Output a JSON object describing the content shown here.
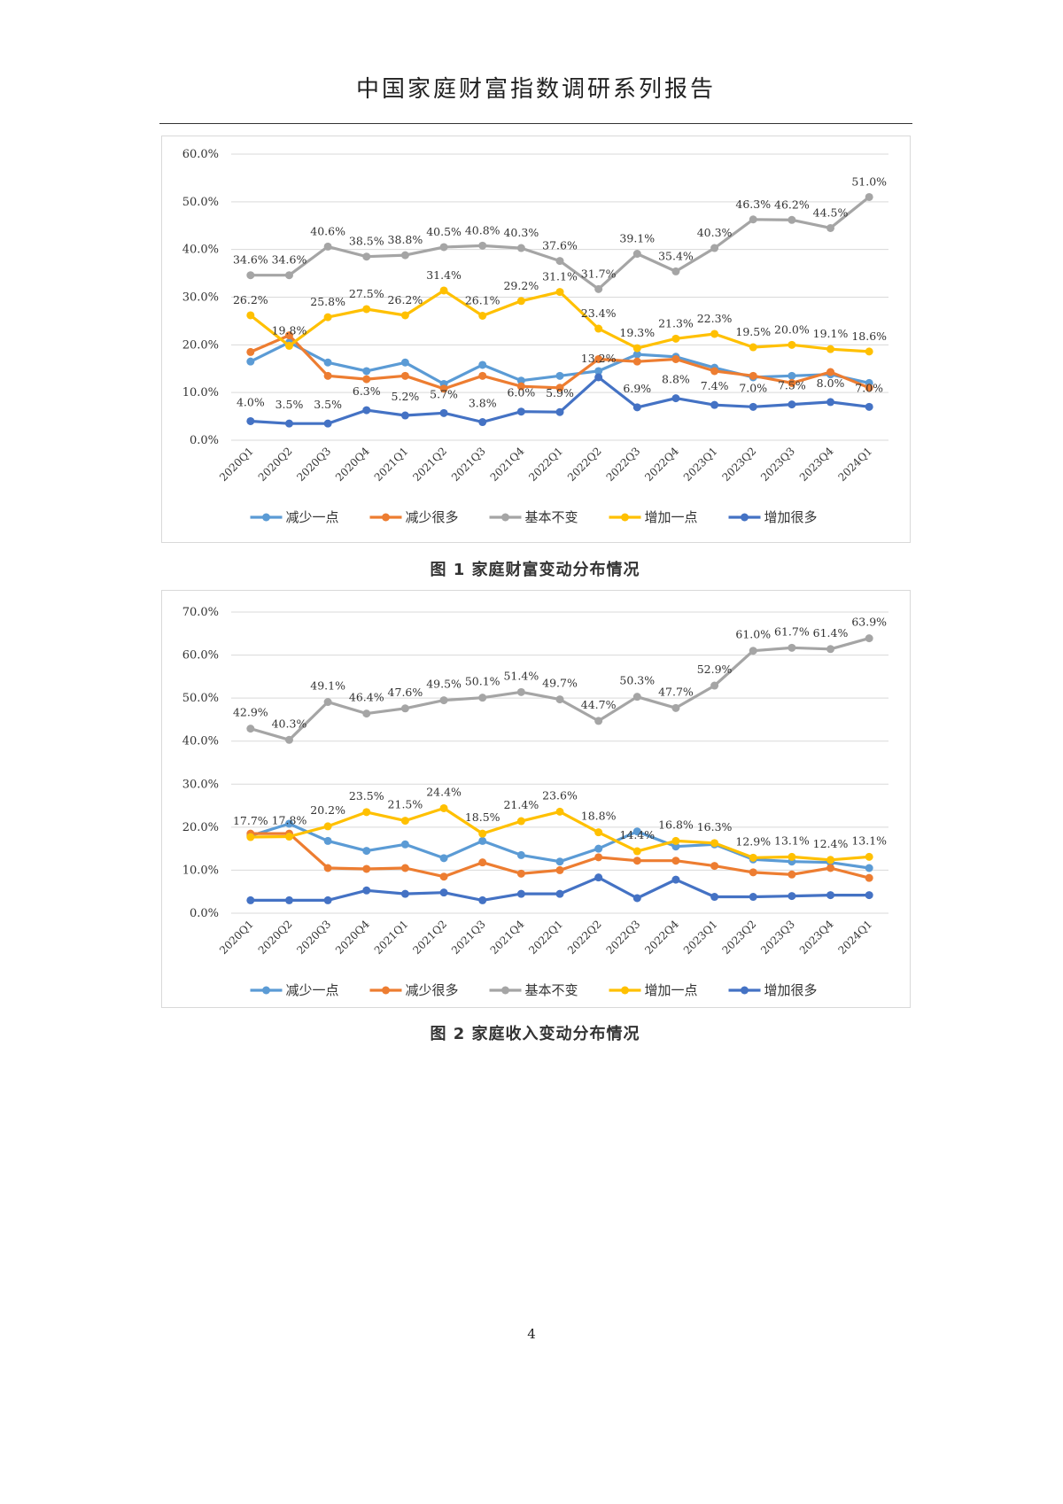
{
  "header": {
    "title": "中国家庭财富指数调研系列报告"
  },
  "page_number": "4",
  "chart_data": [
    {
      "type": "line",
      "caption": "图 1 家庭财富变动分布情况",
      "categories": [
        "2020Q1",
        "2020Q2",
        "2020Q3",
        "2020Q4",
        "2021Q1",
        "2021Q2",
        "2021Q3",
        "2021Q4",
        "2022Q1",
        "2022Q2",
        "2022Q3",
        "2022Q4",
        "2023Q1",
        "2023Q2",
        "2023Q3",
        "2023Q4",
        "2024Q1"
      ],
      "ylim": [
        0,
        60
      ],
      "yticks": [
        "0.0%",
        "10.0%",
        "20.0%",
        "30.0%",
        "40.0%",
        "50.0%",
        "60.0%"
      ],
      "grid": true,
      "legend_position": "bottom",
      "series": [
        {
          "name": "减少一点",
          "color": "#5B9BD5",
          "values": [
            16.5,
            20.5,
            16.3,
            14.5,
            16.3,
            11.8,
            15.8,
            12.5,
            13.5,
            14.5,
            18.0,
            17.5,
            15.2,
            13.2,
            13.5,
            13.8,
            12.0
          ],
          "labels": []
        },
        {
          "name": "减少很多",
          "color": "#ED7D31",
          "values": [
            18.5,
            22.0,
            13.5,
            12.8,
            13.5,
            10.8,
            13.5,
            11.3,
            11.0,
            17.0,
            16.5,
            17.0,
            14.5,
            13.5,
            12.0,
            14.3,
            11.0
          ],
          "labels": []
        },
        {
          "name": "基本不变",
          "color": "#A5A5A5",
          "values": [
            34.6,
            34.6,
            40.6,
            38.5,
            38.8,
            40.5,
            40.8,
            40.3,
            37.6,
            31.7,
            39.1,
            35.4,
            40.3,
            46.3,
            46.2,
            44.5,
            51.0
          ],
          "labels": [
            "34.6%",
            "34.6%",
            "40.6%",
            "38.5%",
            "38.8%",
            "40.5%",
            "40.8%",
            "40.3%",
            "37.6%",
            "31.7%",
            "39.1%",
            "35.4%",
            "40.3%",
            "46.3%",
            "46.2%",
            "44.5%",
            "51.0%"
          ]
        },
        {
          "name": "增加一点",
          "color": "#FFC000",
          "values": [
            26.2,
            19.8,
            25.8,
            27.5,
            26.2,
            31.4,
            26.1,
            29.2,
            31.1,
            23.4,
            19.3,
            21.3,
            22.3,
            19.5,
            20.0,
            19.1,
            18.6
          ],
          "labels": [
            "26.2%",
            "19.8%",
            "25.8%",
            "27.5%",
            "26.2%",
            "31.4%",
            "26.1%",
            "29.2%",
            "31.1%",
            "23.4%",
            "19.3%",
            "21.3%",
            "22.3%",
            "19.5%",
            "20.0%",
            "19.1%",
            "18.6%"
          ]
        },
        {
          "name": "增加很多",
          "color": "#4472C4",
          "values": [
            4.0,
            3.5,
            3.5,
            6.3,
            5.2,
            5.7,
            3.8,
            6.0,
            5.9,
            13.2,
            6.9,
            8.8,
            7.4,
            7.0,
            7.5,
            8.0,
            7.0
          ],
          "labels": [
            "4.0%",
            "3.5%",
            "3.5%",
            "6.3%",
            "5.2%",
            "5.7%",
            "3.8%",
            "6.0%",
            "5.9%",
            "13.2%",
            "6.9%",
            "8.8%",
            "7.4%",
            "7.0%",
            "7.5%",
            "8.0%",
            "7.0%"
          ]
        }
      ]
    },
    {
      "type": "line",
      "caption": "图 2 家庭收入变动分布情况",
      "categories": [
        "2020Q1",
        "2020Q2",
        "2020Q3",
        "2020Q4",
        "2021Q1",
        "2021Q2",
        "2021Q3",
        "2021Q4",
        "2022Q1",
        "2022Q2",
        "2022Q3",
        "2022Q4",
        "2023Q1",
        "2023Q2",
        "2023Q3",
        "2023Q4",
        "2024Q1"
      ],
      "ylim": [
        0,
        70
      ],
      "yticks": [
        "0.0%",
        "10.0%",
        "20.0%",
        "30.0%",
        "40.0%",
        "50.0%",
        "60.0%",
        "70.0%"
      ],
      "grid": true,
      "legend_position": "bottom",
      "series": [
        {
          "name": "减少一点",
          "color": "#5B9BD5",
          "values": [
            18.0,
            20.8,
            16.8,
            14.5,
            16.0,
            12.8,
            16.8,
            13.5,
            12.0,
            15.0,
            19.0,
            15.5,
            16.0,
            12.5,
            12.0,
            11.8,
            10.5
          ],
          "labels": []
        },
        {
          "name": "减少很多",
          "color": "#ED7D31",
          "values": [
            18.5,
            18.5,
            10.5,
            10.3,
            10.5,
            8.5,
            11.8,
            9.2,
            10.0,
            13.0,
            12.2,
            12.2,
            11.0,
            9.5,
            9.0,
            10.5,
            8.2
          ],
          "labels": []
        },
        {
          "name": "基本不变",
          "color": "#A5A5A5",
          "values": [
            42.9,
            40.3,
            49.1,
            46.4,
            47.6,
            49.5,
            50.1,
            51.4,
            49.7,
            44.7,
            50.3,
            47.7,
            52.9,
            61.0,
            61.7,
            61.4,
            63.9
          ],
          "labels": [
            "42.9%",
            "40.3%",
            "49.1%",
            "46.4%",
            "47.6%",
            "49.5%",
            "50.1%",
            "51.4%",
            "49.7%",
            "44.7%",
            "50.3%",
            "47.7%",
            "52.9%",
            "61.0%",
            "61.7%",
            "61.4%",
            "63.9%"
          ]
        },
        {
          "name": "增加一点",
          "color": "#FFC000",
          "values": [
            17.7,
            17.8,
            20.2,
            23.5,
            21.5,
            24.4,
            18.5,
            21.4,
            23.6,
            18.8,
            14.4,
            16.8,
            16.3,
            12.9,
            13.1,
            12.4,
            13.1
          ],
          "labels": [
            "17.7%",
            "17.8%",
            "20.2%",
            "23.5%",
            "21.5%",
            "24.4%",
            "18.5%",
            "21.4%",
            "23.6%",
            "18.8%",
            "14.4%",
            "16.8%",
            "16.3%",
            "12.9%",
            "13.1%",
            "12.4%",
            "13.1%"
          ]
        },
        {
          "name": "增加很多",
          "color": "#4472C4",
          "values": [
            3.0,
            3.0,
            3.0,
            5.3,
            4.5,
            4.8,
            3.0,
            4.5,
            4.5,
            8.3,
            3.5,
            7.8,
            3.8,
            3.8,
            4.0,
            4.2,
            4.2
          ],
          "labels": []
        }
      ]
    }
  ]
}
